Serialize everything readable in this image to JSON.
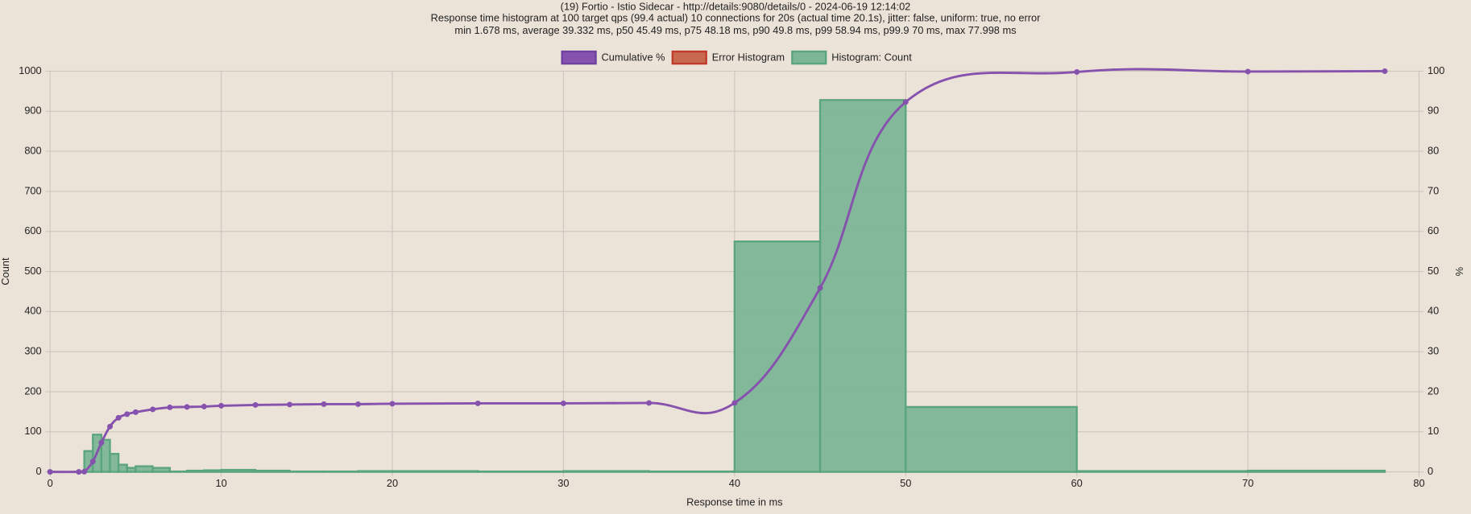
{
  "chart_data": {
    "type": "histogram",
    "title": "(19) Fortio - Istio Sidecar - http://details:9080/details/0 - 2024-06-19 12:14:02",
    "subtitle": [
      "Response time histogram at 100 target qps (99.4 actual) 10 connections for 20s (actual time 20.1s), jitter: false, uniform: true, no error",
      "min 1.678 ms, average 39.332 ms, p50 45.49 ms, p75 48.18 ms, p90 49.8 ms, p99 58.94 ms, p99.9 70 ms, max 77.998 ms"
    ],
    "x_label": "Response time in ms",
    "y_label": "Count",
    "y2_label": "%",
    "bins": [
      1.678,
      2,
      2.5,
      3,
      3.5,
      4,
      4.5,
      5,
      6,
      7,
      8,
      9,
      10,
      12,
      14,
      16,
      18,
      20,
      25,
      30,
      35,
      40,
      45,
      50,
      60,
      70,
      77.998
    ],
    "series": [
      {
        "name": "Cumulative %",
        "color": "#8652ad",
        "type": "line",
        "axis": "y2",
        "x": [
          0,
          1.678,
          2,
          2.5,
          3,
          3.5,
          4,
          4.5,
          5,
          6,
          7,
          8,
          9,
          10,
          12,
          14,
          16,
          18,
          20,
          25,
          30,
          35,
          40,
          45,
          50,
          60,
          70,
          77.998
        ],
        "values": [
          0,
          0,
          0.05,
          2.6,
          7.3,
          11.3,
          13.5,
          14.4,
          14.9,
          15.6,
          16.1,
          16.2,
          16.3,
          16.5,
          16.7,
          16.8,
          16.9,
          16.9,
          17.0,
          17.1,
          17.1,
          17.2,
          17.2,
          45.9,
          92.3,
          99.8,
          99.9,
          100
        ]
      },
      {
        "name": "Error Histogram",
        "color": "#c8694f",
        "type": "histogram",
        "values": []
      },
      {
        "name": "Histogram: Count",
        "color": "#7db597",
        "type": "histogram",
        "values": [
          1,
          52,
          93,
          80,
          45,
          18,
          10,
          14,
          10,
          1,
          3,
          4,
          5,
          3,
          1,
          1,
          2,
          2,
          1,
          2,
          1,
          575,
          928,
          162,
          2,
          3
        ]
      }
    ],
    "xlim": [
      0,
      80
    ],
    "xticks": [
      0,
      10,
      20,
      30,
      40,
      50,
      60,
      70,
      80
    ],
    "ylim": [
      0,
      1000
    ],
    "yticks": [
      0,
      100,
      200,
      300,
      400,
      500,
      600,
      700,
      800,
      900,
      1000
    ],
    "y2lim": [
      0,
      100
    ],
    "y2ticks": [
      0,
      10,
      20,
      30,
      40,
      50,
      60,
      70,
      80,
      90,
      100
    ],
    "grid": true,
    "legend": "top"
  }
}
